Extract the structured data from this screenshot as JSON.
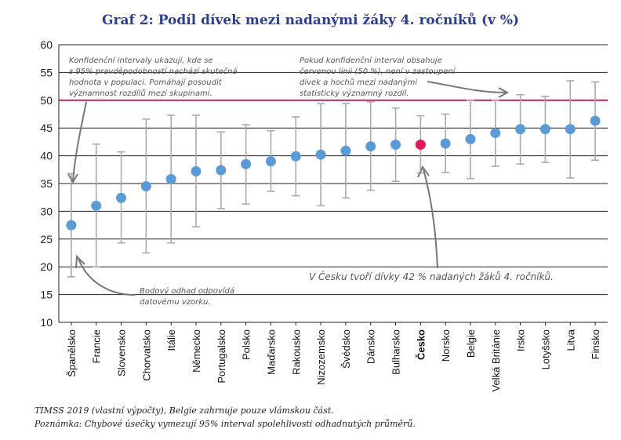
{
  "title": "Graf 2: Podíl dívek mezi nadanými žáky 4. ročníků (v %)",
  "source": "TIMSS 2019 (vlastní výpočty), Belgie zahrnuje pouze vlámskou část.",
  "note": "Poznámka: Chybové úsečky vymezují 95% interval spolehlivosti odhadnutých průměrů.",
  "annotations": {
    "ci_explanation": [
      "Konfidenční intervaly ukazují, kde se",
      "s 95% pravděpodobností nachází skutečná",
      "hodnota v populaci. Pomáhají posoudit",
      "významnost rozdílů mezi skupinami."
    ],
    "red_line": [
      "Pokud konfidenční interval obsahuje",
      "červenou linii (50 %), není v zastoupení",
      "dívek a hochů mezi nadanými",
      "statisticky významný rozdíl."
    ],
    "point_estimate": [
      "Bodový odhad odpovídá",
      "datovému vzorku."
    ],
    "czech": "V Česku tvoří dívky 42 % nadaných žáků 4. ročníků."
  },
  "colors": {
    "point": "#5a9bd5",
    "highlight": "#e0195a",
    "reference_line": "#c2185b",
    "error_bar": "#aaaaaa",
    "title": "#2b3f8c"
  },
  "chart_data": {
    "type": "scatter",
    "title": "Graf 2: Podíl dívek mezi nadanými žáky 4. ročníků (v %)",
    "ylim": [
      10,
      60
    ],
    "yticks": [
      10,
      15,
      20,
      25,
      30,
      35,
      40,
      45,
      50,
      55,
      60
    ],
    "reference_line": 50,
    "grid": true,
    "highlight": "Česko",
    "categories": [
      "Španělsko",
      "Francie",
      "Slovensko",
      "Chorvatsko",
      "Itálie",
      "Německo",
      "Portugalsko",
      "Polsko",
      "Maďarsko",
      "Rakousko",
      "Nizozemsko",
      "Švédsko",
      "Dánsko",
      "Bulharsko",
      "Česko",
      "Norsko",
      "Belgie",
      "Velká Británie",
      "Irsko",
      "Lotyšsko",
      "Litva",
      "Finsko"
    ],
    "values": [
      27.5,
      31.0,
      32.4,
      34.5,
      35.8,
      37.2,
      37.4,
      38.5,
      39.0,
      39.9,
      40.2,
      40.9,
      41.7,
      42.0,
      42.0,
      42.2,
      43.0,
      44.1,
      44.8,
      44.8,
      44.8,
      46.3
    ],
    "ci_low": [
      18.2,
      20.0,
      24.3,
      22.5,
      24.3,
      27.2,
      30.5,
      31.3,
      33.6,
      32.8,
      31.0,
      32.4,
      33.8,
      35.4,
      36.9,
      37.0,
      35.9,
      38.1,
      38.5,
      38.8,
      36.0,
      39.2
    ],
    "ci_high": [
      36.8,
      42.1,
      40.7,
      46.6,
      47.3,
      47.3,
      44.3,
      45.6,
      44.5,
      47.0,
      49.4,
      49.4,
      49.7,
      48.6,
      47.2,
      47.5,
      50.0,
      50.0,
      51.0,
      50.7,
      53.5,
      53.3
    ]
  }
}
